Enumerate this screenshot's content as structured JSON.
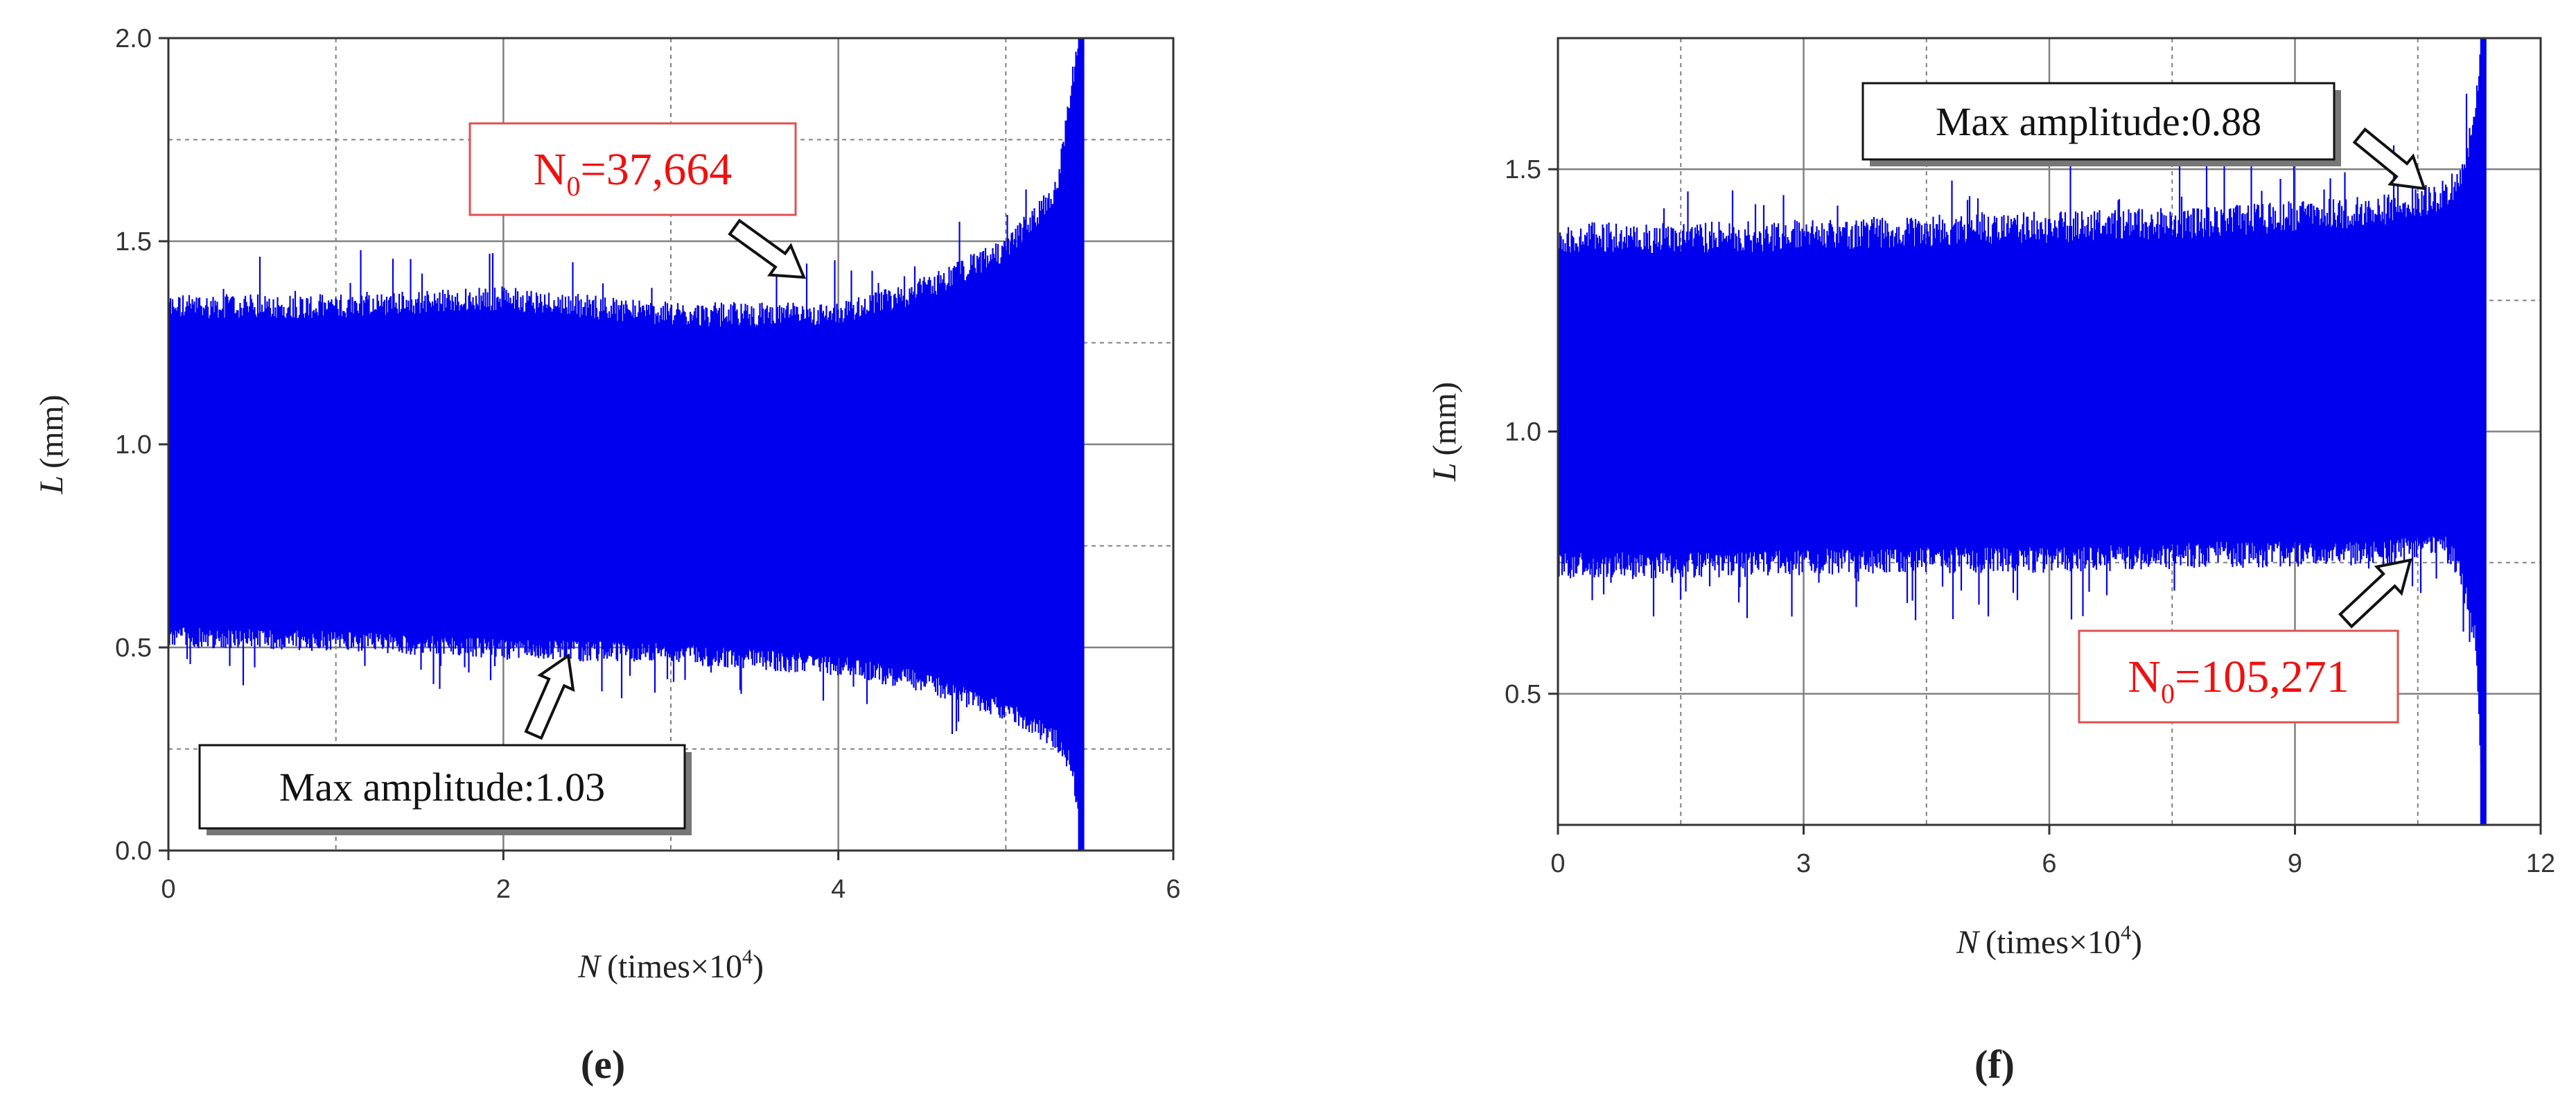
{
  "colors": {
    "signal": "#0000ee",
    "annotation_red": "#ee1111",
    "grid": "#808080",
    "axis": "#333333",
    "box_border_red": "#e05050"
  },
  "chart_data": [
    {
      "panel_label": "(e)",
      "type": "line",
      "xlabel": {
        "var": "N",
        "text": "(times×10",
        "sup": "4",
        "close": ")"
      },
      "ylabel": {
        "var": "L",
        "text": "(mm)"
      },
      "xlim": [
        0,
        6
      ],
      "ylim": [
        0,
        2.0
      ],
      "xticks": [
        0,
        2,
        4,
        6
      ],
      "xtick_labels": [
        "0",
        "2",
        "4",
        "6"
      ],
      "yticks": [
        0,
        0.5,
        1.0,
        1.5,
        2.0
      ],
      "ytick_labels": [
        "0.0",
        "0.5",
        "1.0",
        "1.5",
        "2.0"
      ],
      "grid": true,
      "series": [
        {
          "envelope_x": [
            0,
            1,
            2,
            3,
            4,
            4.5,
            5,
            5.3,
            5.4,
            5.45
          ],
          "envelope_upper": [
            1.34,
            1.34,
            1.36,
            1.32,
            1.32,
            1.38,
            1.48,
            1.62,
            1.9,
            2.0
          ],
          "envelope_lower": [
            0.52,
            0.51,
            0.49,
            0.48,
            0.45,
            0.41,
            0.34,
            0.27,
            0.2,
            0.0
          ],
          "center": 0.93
        }
      ],
      "annotations": [
        {
          "text": "N",
          "sub": "0",
          "rest": "=37,664",
          "color": "red",
          "box": "red",
          "x": 3.8,
          "y": 1.38
        },
        {
          "text": "Max amplitude:1.03",
          "color": "black",
          "box": "shadow",
          "x": 2.4,
          "y": 0.47
        }
      ]
    },
    {
      "panel_label": "(f)",
      "type": "line",
      "xlabel": {
        "var": "N",
        "text": "(times×10",
        "sup": "4",
        "close": ")"
      },
      "ylabel": {
        "var": "L",
        "text": "(mm)"
      },
      "xlim": [
        0,
        12
      ],
      "ylim": [
        0.25,
        1.75
      ],
      "xticks": [
        0,
        3,
        6,
        9,
        12
      ],
      "xtick_labels": [
        "0",
        "3",
        "6",
        "9",
        "12"
      ],
      "yticks": [
        0.5,
        1.0,
        1.5
      ],
      "ytick_labels": [
        "0.5",
        "1.0",
        "1.5"
      ],
      "grid": true,
      "series": [
        {
          "envelope_x": [
            0,
            2,
            4,
            6,
            8,
            10,
            10.8,
            11.0,
            11.2,
            11.3
          ],
          "envelope_upper": [
            1.37,
            1.37,
            1.38,
            1.39,
            1.4,
            1.42,
            1.45,
            1.48,
            1.6,
            1.75
          ],
          "envelope_lower": [
            0.74,
            0.74,
            0.75,
            0.75,
            0.76,
            0.76,
            0.78,
            0.74,
            0.6,
            0.25
          ],
          "center": 1.05
        }
      ],
      "annotations": [
        {
          "text": "Max amplitude:0.88",
          "color": "black",
          "box": "shadow",
          "x": 10.9,
          "y": 1.44
        },
        {
          "text": "N",
          "sub": "0",
          "rest": "=105,271",
          "color": "red",
          "box": "red",
          "x": 10.5,
          "y": 0.77
        }
      ]
    }
  ]
}
